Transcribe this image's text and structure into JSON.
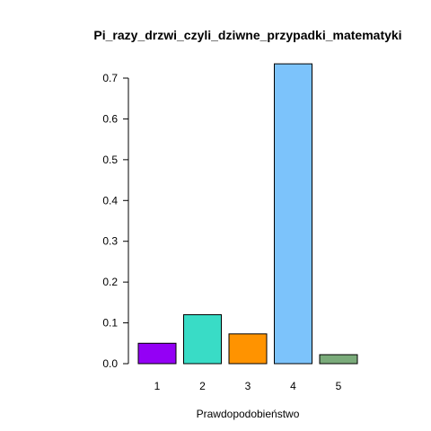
{
  "chart_data": {
    "type": "bar",
    "title": "Pi_razy_drzwi_czyli_dziwne_przypadki_matematyki",
    "xlabel": "Prawdopodobieństwo",
    "ylabel": "",
    "categories": [
      "1",
      "2",
      "3",
      "4",
      "5"
    ],
    "values": [
      0.05,
      0.12,
      0.073,
      0.735,
      0.022
    ],
    "colors": [
      "#9400f5",
      "#39dcc6",
      "#ff9300",
      "#7cc3fb",
      "#7aab7a"
    ],
    "ylim": [
      0,
      0.7
    ],
    "yticks": [
      "0.0",
      "0.1",
      "0.2",
      "0.3",
      "0.4",
      "0.5",
      "0.6",
      "0.7"
    ],
    "grid": false,
    "legend": "none"
  }
}
